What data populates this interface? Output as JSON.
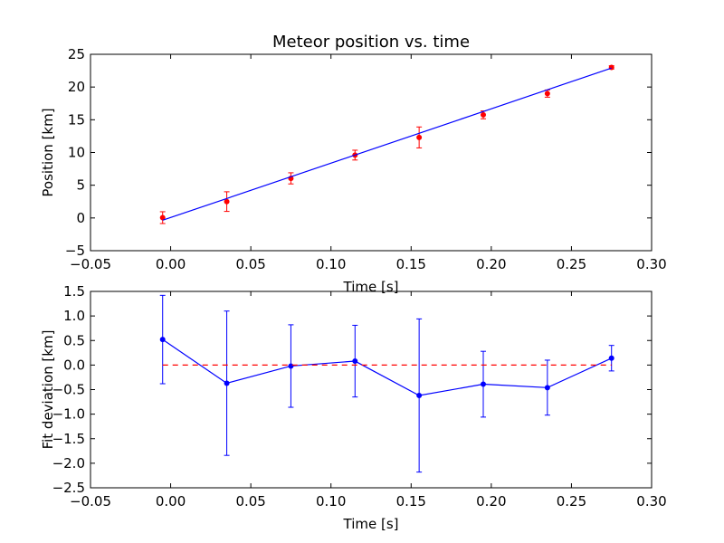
{
  "figure_title": "Meteor position vs. time",
  "chart_data": [
    {
      "type": "scatter",
      "title": "Meteor position vs. time",
      "xlabel": "Time [s]",
      "ylabel": "Position [km]",
      "xlim": [
        -0.05,
        0.3
      ],
      "ylim": [
        -5,
        25
      ],
      "xticks": [
        "−0.05",
        "0.00",
        "0.05",
        "0.10",
        "0.15",
        "0.20",
        "0.25",
        "0.30"
      ],
      "yticks": [
        "−5",
        "0",
        "5",
        "10",
        "15",
        "20",
        "25"
      ],
      "grid": false,
      "series": [
        {
          "kind": "errorbar-points",
          "color": "#ff0000",
          "x": [
            -0.005,
            0.035,
            0.075,
            0.115,
            0.155,
            0.195,
            0.235,
            0.275
          ],
          "y": [
            0.05,
            2.5,
            6.05,
            9.6,
            12.3,
            15.75,
            19.0,
            23.0
          ],
          "yerr": [
            0.9,
            1.5,
            0.85,
            0.75,
            1.6,
            0.6,
            0.55,
            0.25
          ]
        },
        {
          "kind": "fit-line",
          "color": "#0000ff",
          "x": [
            -0.005,
            0.275
          ],
          "y": [
            -0.35,
            22.9
          ]
        }
      ]
    },
    {
      "type": "line",
      "title": "",
      "xlabel": "Time [s]",
      "ylabel": "Fit deviation [km]",
      "xlim": [
        -0.05,
        0.3
      ],
      "ylim": [
        -2.5,
        1.5
      ],
      "xticks": [
        "−0.05",
        "0.00",
        "0.05",
        "0.10",
        "0.15",
        "0.20",
        "0.25",
        "0.30"
      ],
      "yticks": [
        "−2.5",
        "−2.0",
        "−1.5",
        "−1.0",
        "−0.5",
        "0.0",
        "0.5",
        "1.0",
        "1.5"
      ],
      "grid": false,
      "series": [
        {
          "kind": "errorbar-line",
          "color": "#0000ff",
          "x": [
            -0.005,
            0.035,
            0.075,
            0.115,
            0.155,
            0.195,
            0.235,
            0.275
          ],
          "y": [
            0.52,
            -0.37,
            -0.02,
            0.08,
            -0.62,
            -0.39,
            -0.46,
            0.14
          ],
          "yerr": [
            0.9,
            1.47,
            0.84,
            0.73,
            1.56,
            0.67,
            0.56,
            0.26
          ]
        },
        {
          "kind": "zero-line",
          "color": "#ff0000",
          "dashed": true,
          "x": [
            -0.005,
            0.275
          ],
          "y": [
            0,
            0
          ]
        }
      ]
    }
  ]
}
